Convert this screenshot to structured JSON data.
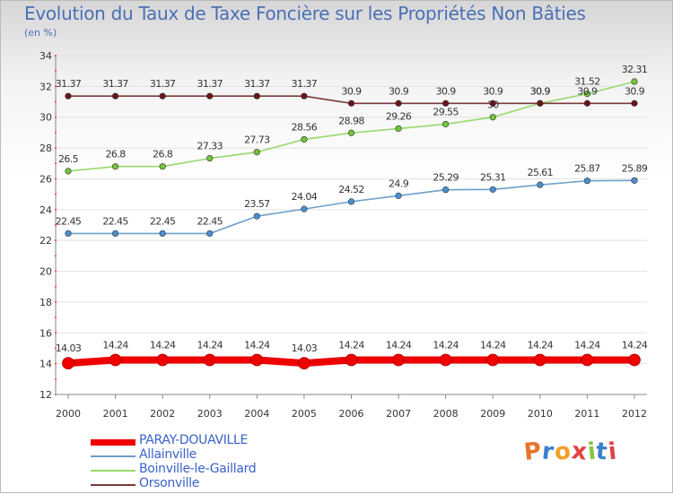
{
  "header": {
    "title": "Evolution du Taux de Taxe Foncière sur les Propriétés Non Bâties",
    "unit": "(en %)"
  },
  "brand": {
    "text": "Proxiti",
    "letter_colors": [
      "#e8732a",
      "#3b7fd0",
      "#f3a02a",
      "#e24040",
      "#8ac53f",
      "#3b7fd0",
      "#e24040"
    ]
  },
  "chart_data": {
    "type": "line",
    "title": "Evolution du Taux de Taxe Foncière sur les Propriétés Non Bâties",
    "ylabel": "(en %)",
    "xlabel": "",
    "categories": [
      "2000",
      "2001",
      "2002",
      "2003",
      "2004",
      "2005",
      "2006",
      "2007",
      "2008",
      "2009",
      "2010",
      "2011",
      "2012"
    ],
    "ylim": [
      12,
      34
    ],
    "yticks": [
      12,
      14,
      16,
      18,
      20,
      22,
      24,
      26,
      28,
      30,
      32,
      34
    ],
    "grid": true,
    "legend_position": "bottom-left",
    "series": [
      {
        "name": "PARAY-DOUAVILLE",
        "color": "#ee0000",
        "marker_color": "#ee0000",
        "emphasis": true,
        "values": [
          14.03,
          14.24,
          14.24,
          14.24,
          14.24,
          14.03,
          14.24,
          14.24,
          14.24,
          14.24,
          14.24,
          14.24,
          14.24
        ],
        "labels": [
          "14.03",
          "14.24",
          "14.24",
          "14.24",
          "14.24",
          "14.03",
          "14.24",
          "14.24",
          "14.24",
          "14.24",
          "14.24",
          "14.24",
          "14.24"
        ]
      },
      {
        "name": "Allainville",
        "color": "#6e9fc9",
        "marker_color": "#4a8fd0",
        "emphasis": false,
        "values": [
          22.45,
          22.45,
          22.45,
          22.45,
          23.57,
          24.04,
          24.52,
          24.9,
          25.29,
          25.31,
          25.61,
          25.87,
          25.89
        ],
        "labels": [
          "22.45",
          "22.45",
          "22.45",
          "22.45",
          "23.57",
          "24.04",
          "24.52",
          "24.9",
          "25.29",
          "25.31",
          "25.61",
          "25.87",
          "25.89"
        ]
      },
      {
        "name": "Boinville-le-Gaillard",
        "color": "#96d86a",
        "marker_color": "#72c43c",
        "emphasis": false,
        "values": [
          26.5,
          26.8,
          26.8,
          27.33,
          27.73,
          28.56,
          28.98,
          29.26,
          29.55,
          30.0,
          30.9,
          31.52,
          32.31
        ],
        "labels": [
          "26.5",
          "26.8",
          "26.8",
          "27.33",
          "27.73",
          "28.56",
          "28.98",
          "29.26",
          "29.55",
          "30",
          "30.9",
          "31.52",
          "32.31"
        ]
      },
      {
        "name": "Orsonville",
        "color": "#7a3a3a",
        "marker_color": "#6a1515",
        "emphasis": false,
        "values": [
          31.37,
          31.37,
          31.37,
          31.37,
          31.37,
          31.37,
          30.9,
          30.9,
          30.9,
          30.9,
          30.9,
          30.9,
          30.9
        ],
        "labels": [
          "31.37",
          "31.37",
          "31.37",
          "31.37",
          "31.37",
          "31.37",
          "30.9",
          "30.9",
          "30.9",
          "30.9",
          "30.9",
          "30.9",
          "30.9"
        ]
      }
    ]
  }
}
